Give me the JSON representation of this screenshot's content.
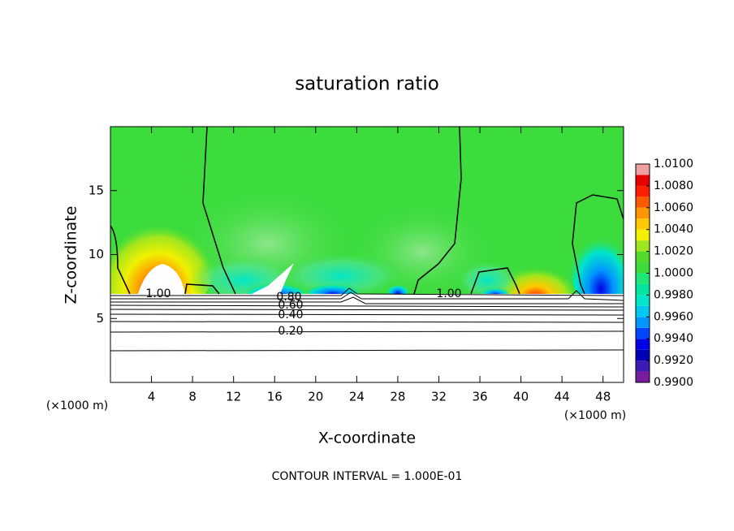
{
  "chart_data": {
    "type": "contour",
    "title": "saturation ratio",
    "x_label": "X-coordinate",
    "y_label": "Z-coordinate",
    "x_unit_labels": [
      "(×1000 m)",
      "(×1000 m)"
    ],
    "footer": "CONTOUR INTERVAL = 1.000E-01",
    "xlim": [
      0,
      50
    ],
    "ylim": [
      0,
      20
    ],
    "xticks": [
      4,
      8,
      12,
      16,
      20,
      24,
      28,
      32,
      36,
      40,
      44,
      48
    ],
    "yticks": [
      5,
      10,
      15
    ],
    "contour_labels": [
      "1.00",
      "0.80",
      "0.60",
      "0.40",
      "0.20",
      "1.00"
    ],
    "colorbar": {
      "levels": [
        0.99,
        0.991,
        0.992,
        0.993,
        0.994,
        0.995,
        0.996,
        0.997,
        0.998,
        0.999,
        1.0,
        1.001,
        1.002,
        1.003,
        1.004,
        1.005,
        1.006,
        1.007,
        1.008,
        1.009,
        1.01
      ],
      "colors": [
        "#7a1aa0",
        "#3c1ab4",
        "#0000b4",
        "#0000e6",
        "#0046ff",
        "#0096ff",
        "#00c8f0",
        "#00e6c8",
        "#00e6a0",
        "#1ee678",
        "#3cdc3c",
        "#50dc28",
        "#a0e61e",
        "#f0f000",
        "#ffc800",
        "#ff9600",
        "#ff5a00",
        "#ff1e00",
        "#e60000",
        "#f0a0a0"
      ],
      "ticks": [
        {
          "value": 0.99,
          "label": "0.9900"
        },
        {
          "value": 0.992,
          "label": "0.9920"
        },
        {
          "value": 0.994,
          "label": "0.9940"
        },
        {
          "value": 0.996,
          "label": "0.9960"
        },
        {
          "value": 0.998,
          "label": "0.9980"
        },
        {
          "value": 1.0,
          "label": "1.0000"
        },
        {
          "value": 1.002,
          "label": "1.0020"
        },
        {
          "value": 1.004,
          "label": "1.0040"
        },
        {
          "value": 1.006,
          "label": "1.0060"
        },
        {
          "value": 1.008,
          "label": "1.0080"
        },
        {
          "value": 1.01,
          "label": "1.0100"
        }
      ]
    }
  }
}
